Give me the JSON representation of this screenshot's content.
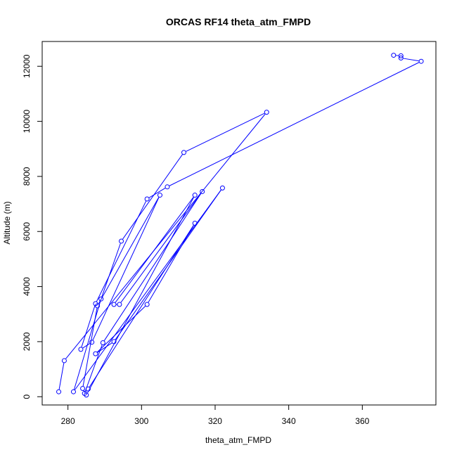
{
  "chart_data": {
    "type": "line",
    "title": "ORCAS RF14 theta_atm_FMPD",
    "xlabel": "theta_atm_FMPD",
    "ylabel": "Altitude (m)",
    "xlim": [
      273,
      380
    ],
    "ylim": [
      -300,
      12900
    ],
    "x_ticks": [
      280,
      300,
      320,
      340,
      360
    ],
    "y_ticks": [
      0,
      2000,
      4000,
      6000,
      8000,
      10000,
      12000
    ],
    "grid": false,
    "legend": "none",
    "series": [
      {
        "color": "#0000ff",
        "marker": "open-circle",
        "points": [
          [
            368.5,
            12400
          ],
          [
            370.5,
            12380
          ],
          [
            370.5,
            12300
          ],
          [
            376.0,
            12180
          ],
          [
            307.0,
            7620
          ],
          [
            301.5,
            7180
          ],
          [
            287.5,
            3380
          ],
          [
            283.5,
            1720
          ],
          [
            286.5,
            1980
          ],
          [
            305.0,
            7320
          ],
          [
            288.0,
            3300
          ],
          [
            284.0,
            300
          ],
          [
            285.0,
            60
          ],
          [
            314.5,
            7320
          ],
          [
            292.5,
            3350
          ],
          [
            294.0,
            3350
          ],
          [
            316.5,
            7450
          ],
          [
            289.5,
            1960
          ],
          [
            284.5,
            120
          ],
          [
            285.5,
            280
          ],
          [
            314.5,
            6300
          ],
          [
            301.5,
            3350
          ],
          [
            287.5,
            1560
          ],
          [
            292.5,
            2000
          ],
          [
            322.0,
            7580
          ],
          [
            281.5,
            180
          ],
          [
            289.0,
            3550
          ],
          [
            294.5,
            5650
          ],
          [
            311.5,
            8870
          ],
          [
            334.0,
            10330
          ],
          [
            279.0,
            1310
          ],
          [
            277.5,
            180
          ]
        ]
      }
    ]
  }
}
